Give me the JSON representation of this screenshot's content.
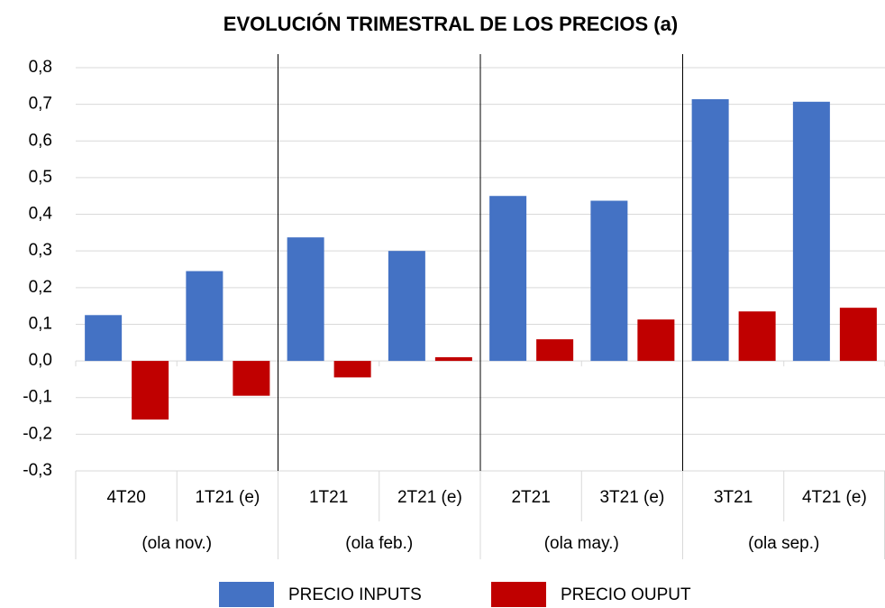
{
  "chart_data": {
    "type": "bar",
    "title": "EVOLUCIÓN TRIMESTRAL DE LOS PRECIOS  (a)",
    "categories": [
      "4T20",
      "1T21 (e)",
      "1T21",
      "2T21 (e)",
      "2T21",
      "3T21 (e)",
      "3T21",
      "4T21 (e)"
    ],
    "groups": [
      "(ola nov.)",
      "(ola feb.)",
      "(ola may.)",
      "(ola sep.)"
    ],
    "series": [
      {
        "name": "PRECIO INPUTS",
        "color": "#4472c4",
        "values": [
          0.125,
          0.245,
          0.337,
          0.3,
          0.45,
          0.437,
          0.714,
          0.707
        ]
      },
      {
        "name": "PRECIO OUPUT",
        "color": "#c00000",
        "values": [
          -0.16,
          -0.095,
          -0.045,
          0.01,
          0.059,
          0.113,
          0.135,
          0.145
        ]
      }
    ],
    "ylim": [
      -0.3,
      0.8
    ],
    "yticks": [
      {
        "value": -0.3,
        "label": "-0,3"
      },
      {
        "value": -0.2,
        "label": "-0,2"
      },
      {
        "value": -0.1,
        "label": "-0,1"
      },
      {
        "value": 0,
        "label": "0,0"
      },
      {
        "value": 0.1,
        "label": "0,1"
      },
      {
        "value": 0.2,
        "label": "0,2"
      },
      {
        "value": 0.3,
        "label": "0,3"
      },
      {
        "value": 0.4,
        "label": "0,4"
      },
      {
        "value": 0.5,
        "label": "0,5"
      },
      {
        "value": 0.6,
        "label": "0,6"
      },
      {
        "value": 0.7,
        "label": "0,7"
      },
      {
        "value": 0.8,
        "label": "0,8"
      }
    ],
    "grid": true
  }
}
